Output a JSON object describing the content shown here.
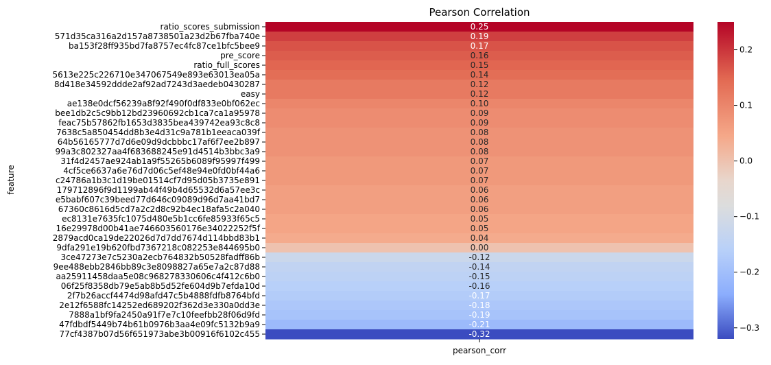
{
  "chart_data": {
    "type": "heatmap",
    "title": "Pearson Correlation",
    "xlabel": "pearson_corr",
    "ylabel": "feature",
    "x_categories": [
      "pearson_corr"
    ],
    "y_tick_labels": [
      "ratio_scores_submission",
      "571d35ca316a2d157a8738501a23d2b67fba740e",
      "ba153f28ff935bd7fa8757ec4fc87ce1bfc5bee9",
      "pre_score",
      "ratio_full_scores",
      "5613e225c226710e347067549e893e63013ea05a",
      "8d418e34592ddde2af92ad7243d3aedeb0430287",
      "easy",
      "ae138e0dcf56239a8f92f490f0df833e0bf062ec",
      "bee1db2c5c9bb12bd23960692cb1ca7ca1a95978",
      "feac75b57862fb1653d3835bea439742ea93c8c8",
      "7638c5a850454dd8b3e4d31c9a781b1eeaca039f",
      "64b56165777d7d6e09d9dcbbbc17af6f7ee2b897",
      "99a3c802327aa4f683688245e91d4514b3bbc3a9",
      "31f4d2457ae924ab1a9f55265b6089f95997f499",
      "4cf5ce6637a6e76d7d06c5ef48e94e0fd0bf44a6",
      "c24786a1b3c1d19be01514cf7d95d05b3735e891",
      "179712896f9d1199ab44f49b4d65532d6a57ee3c",
      "e5babf607c39beed77d646c09089d96d7aa41bd7",
      "67360c8616d5cd7a2c2d8c92b4ec18afa5c2a040",
      "ec8131e7635fc1075d480e5b1cc6fe85933f65c5",
      "16e29978d00b41ae746603560176e34022252f5f",
      "2879acd0ca19de22026d7d7dd7674d114bbd83b1",
      "9dfa291e19b620fbd7367218c082253e844695b0",
      "3ce47273e7c5230a2ecb764832b50528fadff86b",
      "9ee488ebb2846bb89c3e8098827a65e7a2c87d88",
      "aa25911458daa5e08c968278330606c4f412c6b0",
      "06f25f8358db79e5ab8b5d52fe604d9b7efda10d",
      "2f7b26accf4474d98afd47c5b4888fdfb8764bfd",
      "2e12f6588fc14252ed689202f362d3e330a0dd3e",
      "7888a1bf9fa2450a91f7e7c10feefbb28f06d9fd",
      "47fdbdf5449b74b61b0976b3aa4e09fc5132b9a9",
      "77cf4387b07d56f651973abe3b00916f6102c455"
    ],
    "values": [
      0.25,
      0.19,
      0.17,
      0.16,
      0.15,
      0.14,
      0.12,
      0.12,
      0.1,
      0.09,
      0.09,
      0.08,
      0.08,
      0.08,
      0.07,
      0.07,
      0.07,
      0.06,
      0.06,
      0.06,
      0.05,
      0.05,
      0.04,
      0.0,
      -0.12,
      -0.14,
      -0.15,
      -0.16,
      -0.17,
      -0.18,
      -0.19,
      -0.21,
      -0.32
    ],
    "colorbar": {
      "range": [
        -0.32,
        0.25
      ],
      "ticks": [
        0.2,
        0.1,
        0.0,
        -0.1,
        -0.2,
        -0.3
      ],
      "tick_labels": [
        "0.2",
        "0.1",
        "0.0",
        "−0.1",
        "−0.2",
        "−0.3"
      ]
    },
    "colormap": "coolwarm",
    "annotations_overlap": true,
    "grid": false,
    "legend": "colorbar-right"
  }
}
